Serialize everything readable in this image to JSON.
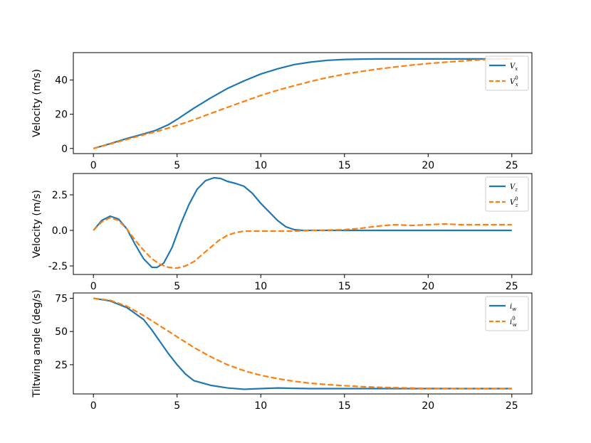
{
  "chart_data": [
    {
      "type": "line",
      "ylabel": "Velocity (m/s)",
      "xlim": [
        -1.2,
        26.2
      ],
      "ylim": [
        -3,
        56
      ],
      "xticks": [
        0,
        5,
        10,
        15,
        20,
        25
      ],
      "xtick_labels": [
        "0",
        "5",
        "10",
        "15",
        "20",
        "25"
      ],
      "yticks": [
        0,
        20,
        40
      ],
      "ytick_labels": [
        "0",
        "20",
        "40"
      ],
      "legend_position": "top-right",
      "series": [
        {
          "name": "V_x",
          "legend_main": "V",
          "legend_sub": "x",
          "legend_sup": "",
          "color": "#1f77b4",
          "style": "solid",
          "x": [
            0,
            1,
            2,
            3,
            3.7,
            4.5,
            5,
            6,
            7,
            8,
            9,
            10,
            11,
            12,
            13,
            14,
            15,
            16,
            17,
            18,
            19,
            20,
            21,
            22,
            23,
            24,
            25
          ],
          "y": [
            0,
            2.8,
            5.8,
            8.5,
            10.5,
            14,
            17,
            23.5,
            29.5,
            35,
            39.5,
            43.5,
            46.5,
            49,
            50.5,
            51.5,
            52,
            52.2,
            52.3,
            52.3,
            52.3,
            52.3,
            52.3,
            52.3,
            52.3,
            52.3,
            52.3
          ]
        },
        {
          "name": "V_x^0",
          "legend_main": "V",
          "legend_sub": "x",
          "legend_sup": "0",
          "color": "#ff7f0e",
          "style": "dashed",
          "x": [
            0,
            1,
            2,
            3,
            4,
            5,
            6,
            7,
            8,
            9,
            10,
            11,
            12,
            13,
            14,
            15,
            16,
            17,
            18,
            19,
            20,
            21,
            22,
            23,
            24,
            25
          ],
          "y": [
            0,
            2.6,
            5.3,
            8,
            10.5,
            13.5,
            16.8,
            20.4,
            24,
            27.5,
            31,
            34,
            36.7,
            39.2,
            41.5,
            43.4,
            45,
            46.4,
            47.6,
            48.7,
            49.6,
            50.4,
            51.1,
            51.7,
            52.2,
            52.5
          ]
        }
      ]
    },
    {
      "type": "line",
      "ylabel": "Velocity (m/s)",
      "xlim": [
        -1.2,
        26.2
      ],
      "ylim": [
        -3.1,
        4.0
      ],
      "xticks": [
        0,
        5,
        10,
        15,
        20,
        25
      ],
      "xtick_labels": [
        "0",
        "5",
        "10",
        "15",
        "20",
        "25"
      ],
      "yticks": [
        -2.5,
        0,
        2.5
      ],
      "ytick_labels": [
        "-2.5",
        "0.0",
        "2.5"
      ],
      "legend_position": "top-right",
      "series": [
        {
          "name": "V_z",
          "legend_main": "V",
          "legend_sub": "z",
          "legend_sup": "",
          "color": "#1f77b4",
          "style": "solid",
          "x": [
            0,
            0.5,
            1,
            1.5,
            2,
            2.5,
            3,
            3.5,
            3.8,
            4.2,
            4.7,
            5.2,
            5.7,
            6.2,
            6.7,
            7.2,
            7.6,
            8,
            8.5,
            9,
            9.5,
            10,
            10.5,
            11,
            11.5,
            12,
            12.5,
            13,
            14,
            15,
            16,
            17,
            18,
            19,
            20,
            21,
            22,
            23,
            24,
            25
          ],
          "y": [
            0,
            0.7,
            1.0,
            0.8,
            0.1,
            -1.0,
            -2.0,
            -2.6,
            -2.6,
            -2.3,
            -1.2,
            0.4,
            1.8,
            2.9,
            3.5,
            3.7,
            3.65,
            3.45,
            3.3,
            3.1,
            2.6,
            1.9,
            1.3,
            0.7,
            0.25,
            0.05,
            0,
            0,
            0,
            0,
            0,
            0,
            0,
            0,
            0,
            0,
            0,
            0,
            0,
            0
          ]
        },
        {
          "name": "V_z^0",
          "legend_main": "V",
          "legend_sub": "z",
          "legend_sup": "0",
          "color": "#ff7f0e",
          "style": "dashed",
          "x": [
            0,
            0.5,
            1,
            1.5,
            2,
            2.5,
            3,
            3.5,
            4,
            4.5,
            5,
            5.5,
            6,
            6.5,
            7,
            7.5,
            8,
            8.5,
            9,
            9.5,
            10,
            11,
            12,
            13,
            14,
            15,
            16,
            17,
            18,
            19,
            20,
            21,
            22,
            23,
            24,
            25
          ],
          "y": [
            0,
            0.6,
            0.9,
            0.7,
            0.1,
            -0.7,
            -1.4,
            -2.0,
            -2.4,
            -2.6,
            -2.65,
            -2.5,
            -2.2,
            -1.7,
            -1.2,
            -0.7,
            -0.35,
            -0.15,
            -0.05,
            -0.05,
            -0.05,
            -0.05,
            -0.05,
            0,
            0.02,
            0.05,
            0.15,
            0.3,
            0.4,
            0.35,
            0.4,
            0.45,
            0.4,
            0.4,
            0.4,
            0.4
          ]
        }
      ]
    },
    {
      "type": "line",
      "ylabel": "Tiltwing angle (deg/s)",
      "xlim": [
        -1.2,
        26.2
      ],
      "ylim": [
        3,
        79
      ],
      "xticks": [
        0,
        5,
        10,
        15,
        20,
        25
      ],
      "xtick_labels": [
        "0",
        "5",
        "10",
        "15",
        "20",
        "25"
      ],
      "yticks": [
        25,
        50,
        75
      ],
      "ytick_labels": [
        "25",
        "50",
        "75"
      ],
      "legend_position": "top-right",
      "series": [
        {
          "name": "i_w",
          "legend_main": "i",
          "legend_sub": "w",
          "legend_sup": "",
          "color": "#1f77b4",
          "style": "solid",
          "x": [
            0,
            1,
            2,
            3,
            3.5,
            4,
            4.5,
            5,
            5.5,
            6,
            7,
            8,
            9,
            10,
            11,
            12,
            13,
            14,
            15,
            16,
            17,
            18,
            19,
            20,
            21,
            22,
            23,
            24,
            25
          ],
          "y": [
            75,
            73,
            68,
            59,
            51,
            42,
            33,
            25,
            18,
            13,
            9.5,
            7.5,
            6.5,
            7,
            7.5,
            7.2,
            7,
            7,
            7,
            7,
            7,
            7,
            7,
            7,
            7,
            7,
            7,
            7,
            7
          ]
        },
        {
          "name": "i_w^0",
          "legend_main": "i",
          "legend_sub": "w",
          "legend_sup": "0",
          "color": "#ff7f0e",
          "style": "dashed",
          "x": [
            0,
            1,
            2,
            3,
            4,
            5,
            6,
            7,
            8,
            9,
            10,
            11,
            12,
            13,
            14,
            15,
            16,
            17,
            18,
            19,
            20,
            21,
            22,
            23,
            24,
            25
          ],
          "y": [
            75,
            73.5,
            69,
            62,
            54,
            46,
            38,
            31,
            25,
            20.5,
            17,
            14.5,
            12.5,
            11,
            10,
            9.2,
            8.5,
            8,
            7.7,
            7.4,
            7.2,
            7.1,
            7,
            7,
            7,
            7
          ]
        }
      ]
    }
  ]
}
